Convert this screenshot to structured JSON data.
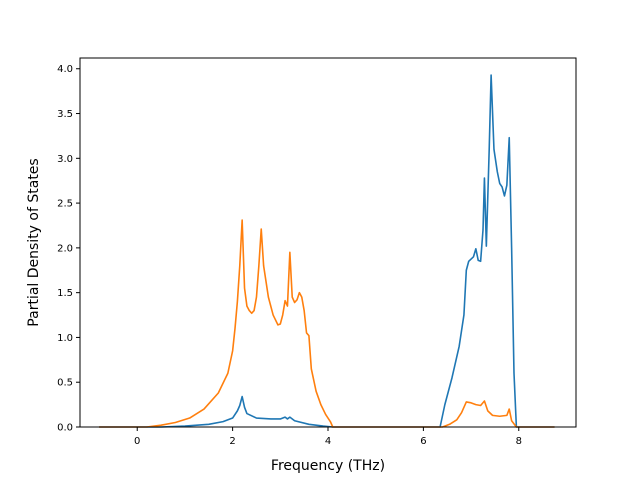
{
  "chart_data": {
    "type": "line",
    "title": "",
    "xlabel": "Frequency (THz)",
    "ylabel": "Partial Density of States",
    "xlim": [
      -1.2,
      9.2
    ],
    "ylim": [
      0,
      4.12
    ],
    "x_ticks": [
      0,
      2,
      4,
      6,
      8
    ],
    "y_ticks": [
      0.0,
      0.5,
      1.0,
      1.5,
      2.0,
      2.5,
      3.0,
      3.5,
      4.0
    ],
    "x_tick_labels": [
      "0",
      "2",
      "4",
      "6",
      "8"
    ],
    "y_tick_labels": [
      "0.0",
      "0.5",
      "1.0",
      "1.5",
      "2.0",
      "2.5",
      "3.0",
      "3.5",
      "4.0"
    ],
    "grid": false,
    "legend": "none",
    "series": [
      {
        "color": "#1f77b4",
        "points": [
          [
            -0.8,
            0.0
          ],
          [
            0.5,
            0.0
          ],
          [
            1.0,
            0.01
          ],
          [
            1.5,
            0.03
          ],
          [
            1.8,
            0.06
          ],
          [
            2.0,
            0.1
          ],
          [
            2.1,
            0.18
          ],
          [
            2.15,
            0.24
          ],
          [
            2.2,
            0.34
          ],
          [
            2.25,
            0.22
          ],
          [
            2.3,
            0.15
          ],
          [
            2.5,
            0.1
          ],
          [
            2.8,
            0.09
          ],
          [
            3.0,
            0.09
          ],
          [
            3.1,
            0.11
          ],
          [
            3.15,
            0.09
          ],
          [
            3.2,
            0.11
          ],
          [
            3.3,
            0.07
          ],
          [
            3.6,
            0.03
          ],
          [
            3.9,
            0.01
          ],
          [
            4.1,
            0.0
          ],
          [
            6.35,
            0.0
          ],
          [
            6.45,
            0.25
          ],
          [
            6.6,
            0.55
          ],
          [
            6.75,
            0.9
          ],
          [
            6.85,
            1.25
          ],
          [
            6.9,
            1.75
          ],
          [
            6.95,
            1.85
          ],
          [
            7.05,
            1.9
          ],
          [
            7.1,
            1.99
          ],
          [
            7.15,
            1.86
          ],
          [
            7.2,
            1.85
          ],
          [
            7.25,
            2.2
          ],
          [
            7.28,
            2.78
          ],
          [
            7.32,
            2.02
          ],
          [
            7.38,
            3.1
          ],
          [
            7.42,
            3.93
          ],
          [
            7.48,
            3.1
          ],
          [
            7.55,
            2.85
          ],
          [
            7.6,
            2.72
          ],
          [
            7.65,
            2.68
          ],
          [
            7.7,
            2.58
          ],
          [
            7.75,
            2.7
          ],
          [
            7.8,
            3.23
          ],
          [
            7.85,
            2.0
          ],
          [
            7.9,
            0.6
          ],
          [
            7.95,
            0.0
          ],
          [
            8.75,
            0.0
          ]
        ]
      },
      {
        "color": "#ff7f0e",
        "points": [
          [
            -0.8,
            0.0
          ],
          [
            0.2,
            0.0
          ],
          [
            0.5,
            0.02
          ],
          [
            0.8,
            0.05
          ],
          [
            1.1,
            0.1
          ],
          [
            1.4,
            0.2
          ],
          [
            1.7,
            0.38
          ],
          [
            1.9,
            0.6
          ],
          [
            2.0,
            0.85
          ],
          [
            2.05,
            1.1
          ],
          [
            2.1,
            1.4
          ],
          [
            2.15,
            1.8
          ],
          [
            2.2,
            2.31
          ],
          [
            2.25,
            1.55
          ],
          [
            2.3,
            1.35
          ],
          [
            2.35,
            1.3
          ],
          [
            2.4,
            1.27
          ],
          [
            2.45,
            1.3
          ],
          [
            2.5,
            1.45
          ],
          [
            2.55,
            1.8
          ],
          [
            2.6,
            2.21
          ],
          [
            2.65,
            1.8
          ],
          [
            2.75,
            1.45
          ],
          [
            2.85,
            1.25
          ],
          [
            2.95,
            1.14
          ],
          [
            3.0,
            1.15
          ],
          [
            3.05,
            1.25
          ],
          [
            3.1,
            1.41
          ],
          [
            3.15,
            1.35
          ],
          [
            3.2,
            1.95
          ],
          [
            3.25,
            1.45
          ],
          [
            3.3,
            1.39
          ],
          [
            3.35,
            1.42
          ],
          [
            3.4,
            1.5
          ],
          [
            3.45,
            1.45
          ],
          [
            3.5,
            1.3
          ],
          [
            3.55,
            1.05
          ],
          [
            3.6,
            1.02
          ],
          [
            3.65,
            0.65
          ],
          [
            3.75,
            0.4
          ],
          [
            3.85,
            0.25
          ],
          [
            3.95,
            0.14
          ],
          [
            4.05,
            0.06
          ],
          [
            4.1,
            0.0
          ],
          [
            6.4,
            0.0
          ],
          [
            6.55,
            0.03
          ],
          [
            6.7,
            0.08
          ],
          [
            6.8,
            0.16
          ],
          [
            6.9,
            0.28
          ],
          [
            7.0,
            0.27
          ],
          [
            7.1,
            0.25
          ],
          [
            7.2,
            0.24
          ],
          [
            7.28,
            0.29
          ],
          [
            7.35,
            0.18
          ],
          [
            7.45,
            0.13
          ],
          [
            7.6,
            0.12
          ],
          [
            7.75,
            0.13
          ],
          [
            7.8,
            0.2
          ],
          [
            7.85,
            0.07
          ],
          [
            7.95,
            0.0
          ],
          [
            8.75,
            0.0
          ]
        ]
      }
    ]
  }
}
